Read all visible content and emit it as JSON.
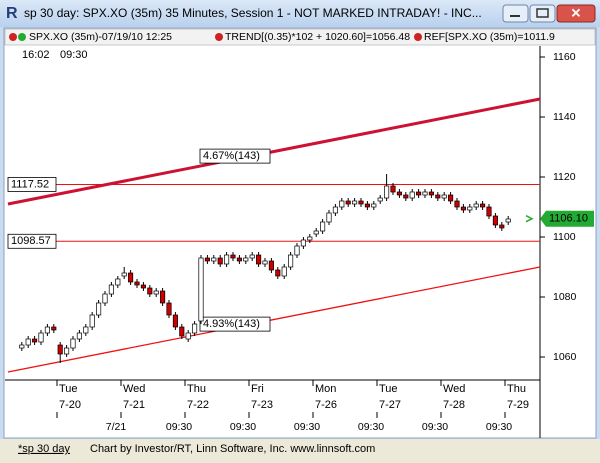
{
  "window": {
    "title": "sp 30 day: SPX.XO (35m) 35 Minutes, Session 1 - NOT MARKED INTRADAY! - INC..."
  },
  "legend": {
    "items": [
      {
        "text": "SPX.XO (35m)-07/19/10 12:25"
      },
      {
        "text": "TREND[(0.35)*102 + 1020.60]=1056.48"
      },
      {
        "text": "REF[SPX.XO (35m)=1011.9"
      }
    ]
  },
  "footer": {
    "tab": "*sp 30 day",
    "credit": "Chart by Investor/RT, Linn Software, Inc. www.linnsoft.com"
  },
  "chart_data": {
    "type": "candlestick",
    "corner_times": [
      "16:02",
      "09:30"
    ],
    "days": [
      {
        "name": "Tue",
        "date": "7-20"
      },
      {
        "name": "Wed",
        "date": "7-21"
      },
      {
        "name": "Thu",
        "date": "7-22"
      },
      {
        "name": "Fri",
        "date": "7-23"
      },
      {
        "name": "Mon",
        "date": "7-26"
      },
      {
        "name": "Tue",
        "date": "7-27"
      },
      {
        "name": "Wed",
        "date": "7-28"
      },
      {
        "name": "Thu",
        "date": "7-29"
      }
    ],
    "bottom_labels": [
      "7/21",
      "09:30",
      "09:30",
      "09:30",
      "09:30",
      "09:30",
      "09:30"
    ],
    "open": [
      1063,
      1064,
      1066,
      1065,
      1068,
      1070,
      1064,
      1061,
      1063,
      1066,
      1068,
      1070,
      1074,
      1078,
      1081,
      1084,
      1087,
      1088,
      1085,
      1084,
      1083,
      1081,
      1082,
      1078,
      1074,
      1070,
      1066,
      1068,
      1072,
      1093,
      1092,
      1093,
      1091,
      1094,
      1093,
      1092,
      1093,
      1094,
      1091,
      1092,
      1089,
      1087,
      1090,
      1094,
      1097,
      1099,
      1101,
      1102,
      1105,
      1108,
      1110,
      1112,
      1111,
      1112,
      1111,
      1110,
      1112,
      1113,
      1117,
      1115,
      1114,
      1113,
      1115,
      1114,
      1115,
      1114,
      1113,
      1114,
      1112,
      1110,
      1109,
      1110,
      1111,
      1110,
      1107,
      1104,
      1105
    ],
    "high": [
      1065,
      1067,
      1067,
      1069,
      1071,
      1071,
      1065,
      1064,
      1067,
      1069,
      1071,
      1075,
      1079,
      1082,
      1085,
      1087,
      1090,
      1089,
      1086,
      1085,
      1084,
      1083,
      1083,
      1079,
      1075,
      1071,
      1069,
      1072,
      1094,
      1094,
      1094,
      1094,
      1095,
      1095,
      1094,
      1094,
      1095,
      1095,
      1093,
      1093,
      1090,
      1091,
      1095,
      1098,
      1100,
      1101,
      1103,
      1106,
      1109,
      1111,
      1113,
      1113,
      1113,
      1113,
      1112,
      1112,
      1114,
      1121,
      1118,
      1116,
      1115,
      1116,
      1116,
      1116,
      1116,
      1115,
      1115,
      1115,
      1113,
      1111,
      1111,
      1112,
      1112,
      1111,
      1108,
      1105,
      1107
    ],
    "low": [
      1062,
      1063,
      1064,
      1064,
      1067,
      1068,
      1058,
      1060,
      1062,
      1065,
      1067,
      1069,
      1073,
      1077,
      1080,
      1083,
      1086,
      1084,
      1083,
      1082,
      1080,
      1080,
      1077,
      1073,
      1069,
      1066,
      1065,
      1067,
      1071,
      1091,
      1091,
      1090,
      1090,
      1092,
      1091,
      1091,
      1092,
      1090,
      1090,
      1088,
      1086,
      1086,
      1089,
      1093,
      1096,
      1098,
      1100,
      1101,
      1104,
      1107,
      1109,
      1110,
      1110,
      1110,
      1109,
      1109,
      1111,
      1112,
      1114,
      1113,
      1112,
      1112,
      1113,
      1113,
      1113,
      1112,
      1112,
      1111,
      1109,
      1108,
      1108,
      1109,
      1109,
      1106,
      1103,
      1102,
      1104
    ],
    "close": [
      1064,
      1066,
      1065,
      1068,
      1070,
      1069,
      1061,
      1063,
      1066,
      1068,
      1070,
      1074,
      1078,
      1081,
      1084,
      1086,
      1088,
      1085,
      1084,
      1083,
      1081,
      1082,
      1078,
      1074,
      1070,
      1067,
      1068,
      1071,
      1093,
      1092,
      1093,
      1091,
      1094,
      1093,
      1092,
      1093,
      1094,
      1091,
      1092,
      1089,
      1087,
      1090,
      1094,
      1097,
      1099,
      1100,
      1102,
      1105,
      1108,
      1110,
      1112,
      1111,
      1112,
      1111,
      1110,
      1111,
      1113,
      1117,
      1115,
      1114,
      1113,
      1115,
      1114,
      1115,
      1114,
      1113,
      1114,
      1112,
      1110,
      1109,
      1110,
      1111,
      1110,
      1107,
      1104,
      1103,
      1106
    ],
    "up_color": "#ffffff",
    "down_color": "#cc0000",
    "trendlines": [
      {
        "label": "4.67%(143)",
        "start": 1111,
        "end": 1146,
        "color": "#cc1133",
        "width": 3
      },
      {
        "label": "4.93%(143)",
        "start": 1055,
        "end": 1090,
        "color": "#ee1111",
        "width": 1.3
      }
    ],
    "levels": [
      1117.52,
      1098.57
    ],
    "level_color": "#ee1111",
    "last_price": {
      "value": 1106.1,
      "label": "1106.10"
    },
    "last_color": "#22aa33",
    "ylim": [
      1053,
      1163
    ],
    "yticks": [
      1060,
      1080,
      1100,
      1120,
      1140,
      1160
    ]
  }
}
